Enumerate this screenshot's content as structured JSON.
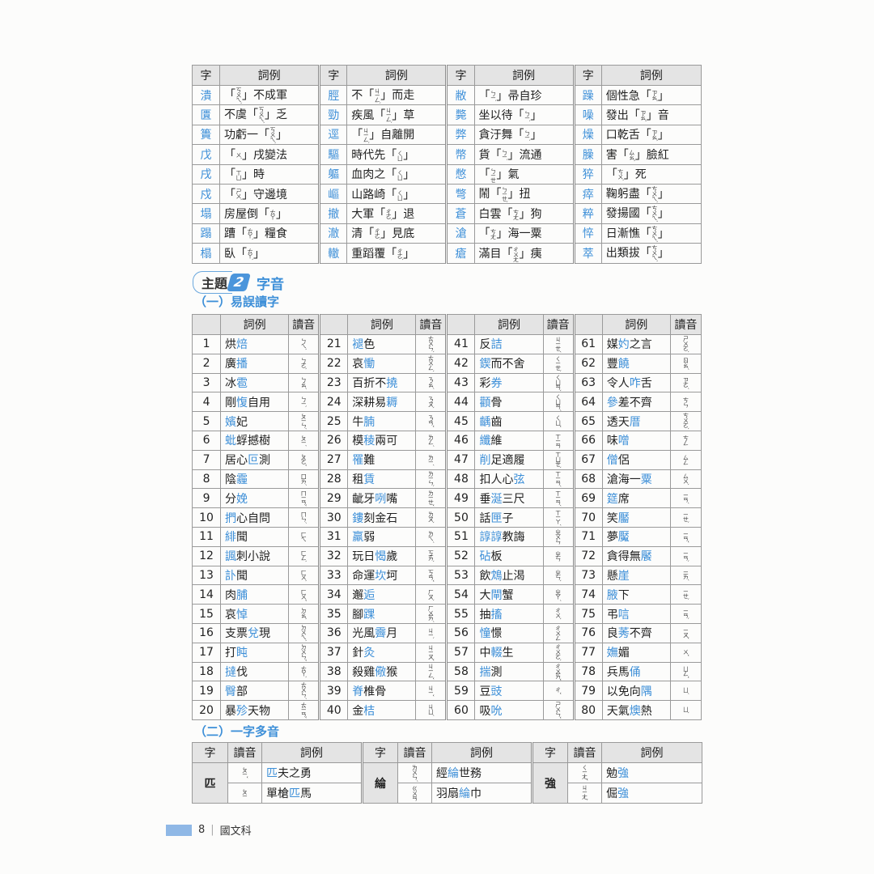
{
  "top_table": {
    "headers": {
      "char": "字",
      "example": "詞例"
    },
    "groups": [
      [
        {
          "char": "潰",
          "pre": "「",
          "zy": "ㄎㄨㄟˋ",
          "post": "」不成軍"
        },
        {
          "char": "匱",
          "pre": "不虞「",
          "zy": "ㄎㄨㄟˋ",
          "post": "」乏"
        },
        {
          "char": "簣",
          "pre": "功虧一「",
          "zy": "ㄎㄨㄟˋ",
          "post": "」"
        },
        {
          "char": "戊",
          "pre": "「",
          "zy": "ㄨˋ",
          "post": "」戌變法"
        },
        {
          "char": "戌",
          "pre": "「",
          "zy": "ㄒㄩ",
          "post": "」時"
        },
        {
          "char": "戍",
          "pre": "「",
          "zy": "ㄕㄨˋ",
          "post": "」守邊境"
        },
        {
          "char": "塌",
          "pre": "房屋倒「",
          "zy": "ㄊㄚ",
          "post": "」"
        },
        {
          "char": "蹋",
          "pre": "蹧「",
          "zy": "ㄊㄚˋ",
          "post": "」糧食"
        },
        {
          "char": "榻",
          "pre": "臥「",
          "zy": "ㄊㄚˋ",
          "post": "」"
        }
      ],
      [
        {
          "char": "脛",
          "pre": "不「",
          "zy": "ㄐㄧㄥˋ",
          "post": "」而走"
        },
        {
          "char": "勁",
          "pre": "疾風「",
          "zy": "ㄐㄧㄥˋ",
          "post": "」草"
        },
        {
          "char": "逕",
          "pre": "「",
          "zy": "ㄐㄧㄥˋ",
          "post": "」自離開"
        },
        {
          "char": "驅",
          "pre": "時代先「",
          "zy": "ㄑㄩ",
          "post": "」"
        },
        {
          "char": "軀",
          "pre": "血肉之「",
          "zy": "ㄑㄩ",
          "post": "」"
        },
        {
          "char": "嶇",
          "pre": "山路崎「",
          "zy": "ㄑㄩ",
          "post": "」"
        },
        {
          "char": "撤",
          "pre": "大軍「",
          "zy": "ㄔㄜˋ",
          "post": "」退"
        },
        {
          "char": "澈",
          "pre": "清「",
          "zy": "ㄔㄜˋ",
          "post": "」見底"
        },
        {
          "char": "轍",
          "pre": "重蹈覆「",
          "zy": "ㄔㄜˋ",
          "post": "」"
        }
      ],
      [
        {
          "char": "敝",
          "pre": "「",
          "zy": "ㄅㄧˋ",
          "post": "」帚自珍"
        },
        {
          "char": "斃",
          "pre": "坐以待「",
          "zy": "ㄅㄧˋ",
          "post": "」"
        },
        {
          "char": "弊",
          "pre": "貪汙舞「",
          "zy": "ㄅㄧˋ",
          "post": "」"
        },
        {
          "char": "幣",
          "pre": "貨「",
          "zy": "ㄅㄧˋ",
          "post": "」流通"
        },
        {
          "char": "憋",
          "pre": "「",
          "zy": "ㄅㄧㄝ",
          "post": "」氣"
        },
        {
          "char": "彆",
          "pre": "鬧「",
          "zy": "ㄅㄧㄝˋ",
          "post": "」扭"
        },
        {
          "char": "蒼",
          "pre": "白雲「",
          "zy": "ㄘㄤ",
          "post": "」狗"
        },
        {
          "char": "滄",
          "pre": "「",
          "zy": "ㄘㄤ",
          "post": "」海一粟"
        },
        {
          "char": "瘡",
          "pre": "滿目「",
          "zy": "ㄔㄨㄤ",
          "post": "」痍"
        }
      ],
      [
        {
          "char": "躁",
          "pre": "個性急「",
          "zy": "ㄗㄠˋ",
          "post": "」"
        },
        {
          "char": "噪",
          "pre": "發出「",
          "zy": "ㄗㄠˋ",
          "post": "」音"
        },
        {
          "char": "燥",
          "pre": "口乾舌「",
          "zy": "ㄗㄠˋ",
          "post": "」"
        },
        {
          "char": "臊",
          "pre": "害「",
          "zy": "ㄙㄠˋ",
          "post": "」臉紅"
        },
        {
          "char": "猝",
          "pre": "「",
          "zy": "ㄘㄨˋ",
          "post": "」死"
        },
        {
          "char": "瘁",
          "pre": "鞠躬盡「",
          "zy": "ㄘㄨㄟˋ",
          "post": "」"
        },
        {
          "char": "粹",
          "pre": "發揚國「",
          "zy": "ㄘㄨㄟˋ",
          "post": "」"
        },
        {
          "char": "悴",
          "pre": "日漸憔「",
          "zy": "ㄘㄨㄟˋ",
          "post": "」"
        },
        {
          "char": "萃",
          "pre": "出類拔「",
          "zy": "ㄘㄨㄟˋ",
          "post": "」"
        }
      ]
    ]
  },
  "topic": {
    "label": "主題",
    "number": "2",
    "title": "字音"
  },
  "section1": {
    "title": "（一）易誤讀字",
    "headers": {
      "example": "詞例",
      "reading": "讀音"
    },
    "items": [
      {
        "n": "1",
        "pre": "烘",
        "hl": "焙",
        "post": "",
        "r": "ㄅㄟˋ"
      },
      {
        "n": "2",
        "pre": "廣",
        "hl": "播",
        "post": "",
        "r": "ㄅㄛˋ"
      },
      {
        "n": "3",
        "pre": "冰",
        "hl": "雹",
        "post": "",
        "r": "ㄅㄠˊ"
      },
      {
        "n": "4",
        "pre": "剛",
        "hl": "愎",
        "post": "自用",
        "r": "ㄅㄧˋ"
      },
      {
        "n": "5",
        "pre": "",
        "hl": "嬪",
        "post": "妃",
        "r": "ㄆㄧㄣˊ"
      },
      {
        "n": "6",
        "pre": "",
        "hl": "蚍",
        "post": "蜉撼樹",
        "r": "ㄆㄧˊ"
      },
      {
        "n": "7",
        "pre": "居心",
        "hl": "叵",
        "post": "測",
        "r": "ㄆㄛˇ"
      },
      {
        "n": "8",
        "pre": "陰",
        "hl": "霾",
        "post": "",
        "r": "ㄇㄞˊ"
      },
      {
        "n": "9",
        "pre": "分",
        "hl": "娩",
        "post": "",
        "r": "ㄇㄧㄢˇ"
      },
      {
        "n": "10",
        "pre": "",
        "hl": "捫",
        "post": "心自問",
        "r": "ㄇㄣˊ"
      },
      {
        "n": "11",
        "pre": "",
        "hl": "緋",
        "post": "聞",
        "r": "ㄈㄟ"
      },
      {
        "n": "12",
        "pre": "",
        "hl": "諷",
        "post": "刺小說",
        "r": "ㄈㄥˋ"
      },
      {
        "n": "13",
        "pre": "",
        "hl": "訃",
        "post": "聞",
        "r": "ㄈㄨˋ"
      },
      {
        "n": "14",
        "pre": "肉",
        "hl": "脯",
        "post": "",
        "r": "ㄈㄨˇ"
      },
      {
        "n": "15",
        "pre": "哀",
        "hl": "悼",
        "post": "",
        "r": "ㄉㄠˋ"
      },
      {
        "n": "16",
        "pre": "支票",
        "hl": "兌",
        "post": "現",
        "r": "ㄉㄨㄟˋ"
      },
      {
        "n": "17",
        "pre": "打",
        "hl": "盹",
        "post": "",
        "r": "ㄉㄨㄣˇ"
      },
      {
        "n": "18",
        "pre": "",
        "hl": "撻",
        "post": "伐",
        "r": "ㄊㄚˋ"
      },
      {
        "n": "19",
        "pre": "",
        "hl": "臀",
        "post": "部",
        "r": "ㄊㄨㄣˊ"
      },
      {
        "n": "20",
        "pre": "暴",
        "hl": "殄",
        "post": "天物",
        "r": "ㄊㄧㄢˇ"
      },
      {
        "n": "21",
        "pre": "",
        "hl": "褪",
        "post": "色",
        "r": "ㄊㄨㄣˋ"
      },
      {
        "n": "22",
        "pre": "哀",
        "hl": "慟",
        "post": "",
        "r": "ㄊㄨㄥˋ"
      },
      {
        "n": "23",
        "pre": "百折不",
        "hl": "撓",
        "post": "",
        "r": "ㄋㄠˊ"
      },
      {
        "n": "24",
        "pre": "深耕易",
        "hl": "耨",
        "post": "",
        "r": "ㄋㄡˋ"
      },
      {
        "n": "25",
        "pre": "牛",
        "hl": "腩",
        "post": "",
        "r": "ㄋㄢˇ"
      },
      {
        "n": "26",
        "pre": "模",
        "hl": "稜",
        "post": "兩可",
        "r": "ㄌㄥˊ"
      },
      {
        "n": "27",
        "pre": "",
        "hl": "罹",
        "post": "難",
        "r": "ㄌㄧˊ"
      },
      {
        "n": "28",
        "pre": "租",
        "hl": "賃",
        "post": "",
        "r": "ㄌㄧㄣˋ"
      },
      {
        "n": "29",
        "pre": "齜牙",
        "hl": "咧",
        "post": "嘴",
        "r": "ㄌㄧㄝˇ"
      },
      {
        "n": "30",
        "pre": "",
        "hl": "鏤",
        "post": "刻金石",
        "r": "ㄌㄡˋ"
      },
      {
        "n": "31",
        "pre": "",
        "hl": "羸",
        "post": "弱",
        "r": "ㄌㄟˊ"
      },
      {
        "n": "32",
        "pre": "玩日",
        "hl": "愒",
        "post": "歲",
        "r": "ㄎㄞˋ"
      },
      {
        "n": "33",
        "pre": "命運",
        "hl": "坎",
        "post": "坷",
        "r": "ㄎㄢˇ"
      },
      {
        "n": "34",
        "pre": "邂",
        "hl": "逅",
        "post": "",
        "r": "ㄏㄡˋ"
      },
      {
        "n": "35",
        "pre": "腳",
        "hl": "踝",
        "post": "",
        "r": "ㄏㄨㄞˊ"
      },
      {
        "n": "36",
        "pre": "光風",
        "hl": "霽",
        "post": "月",
        "r": "ㄐㄧˋ"
      },
      {
        "n": "37",
        "pre": "針",
        "hl": "灸",
        "post": "",
        "r": "ㄐㄧㄡˇ"
      },
      {
        "n": "38",
        "pre": "殺雞",
        "hl": "儆",
        "post": "猴",
        "r": "ㄐㄧㄥˇ"
      },
      {
        "n": "39",
        "pre": "",
        "hl": "脊",
        "post": "椎骨",
        "r": "ㄐㄧˇ"
      },
      {
        "n": "40",
        "pre": "金",
        "hl": "桔",
        "post": "",
        "r": "ㄐㄩˊ"
      },
      {
        "n": "41",
        "pre": "反",
        "hl": "詰",
        "post": "",
        "r": "ㄐㄧㄝˊ"
      },
      {
        "n": "42",
        "pre": "",
        "hl": "鍥",
        "post": "而不舍",
        "r": "ㄑㄧㄝˋ"
      },
      {
        "n": "43",
        "pre": "彩",
        "hl": "券",
        "post": "",
        "r": "ㄑㄩㄢˋ"
      },
      {
        "n": "44",
        "pre": "",
        "hl": "顴",
        "post": "骨",
        "r": "ㄑㄩㄢˊ"
      },
      {
        "n": "45",
        "pre": "",
        "hl": "齲",
        "post": "齒",
        "r": "ㄑㄩˇ"
      },
      {
        "n": "46",
        "pre": "",
        "hl": "纖",
        "post": "維",
        "r": "ㄒㄧㄢ"
      },
      {
        "n": "47",
        "pre": "",
        "hl": "削",
        "post": "足適履",
        "r": "ㄒㄩㄝˋ"
      },
      {
        "n": "48",
        "pre": "扣人心",
        "hl": "弦",
        "post": "",
        "r": "ㄒㄧㄢˊ"
      },
      {
        "n": "49",
        "pre": "垂",
        "hl": "涎",
        "post": "三尺",
        "r": "ㄒㄧㄢˊ"
      },
      {
        "n": "50",
        "pre": "話",
        "hl": "匣",
        "post": "子",
        "r": "ㄒㄧㄚˊ"
      },
      {
        "n": "51",
        "pre": "",
        "hl": "諄諄",
        "post": "教誨",
        "r": "ㄓㄨㄣ"
      },
      {
        "n": "52",
        "pre": "",
        "hl": "砧",
        "post": "板",
        "r": "ㄓㄣ"
      },
      {
        "n": "53",
        "pre": "飲",
        "hl": "鴆",
        "post": "止渴",
        "r": "ㄓㄣˋ"
      },
      {
        "n": "54",
        "pre": "大",
        "hl": "閘",
        "post": "蟹",
        "r": "ㄓㄚˊ"
      },
      {
        "n": "55",
        "pre": "抽",
        "hl": "搐",
        "post": "",
        "r": "ㄔㄨˋ"
      },
      {
        "n": "56",
        "pre": "",
        "hl": "憧",
        "post": "憬",
        "r": "ㄔㄨㄥ"
      },
      {
        "n": "57",
        "pre": "中",
        "hl": "輟",
        "post": "生",
        "r": "ㄔㄨㄛˋ"
      },
      {
        "n": "58",
        "pre": "",
        "hl": "揣",
        "post": "測",
        "r": "ㄔㄨㄞˇ"
      },
      {
        "n": "59",
        "pre": "豆",
        "hl": "豉",
        "post": "",
        "r": "ㄔˇ"
      },
      {
        "n": "60",
        "pre": "吸",
        "hl": "吮",
        "post": "",
        "r": "ㄕㄨㄣˇ"
      },
      {
        "n": "61",
        "pre": "媒",
        "hl": "妁",
        "post": "之言",
        "r": "ㄕㄨㄛˋ"
      },
      {
        "n": "62",
        "pre": "豐",
        "hl": "饒",
        "post": "",
        "r": "ㄖㄠˊ"
      },
      {
        "n": "63",
        "pre": "令人",
        "hl": "咋",
        "post": "舌",
        "r": "ㄗㄜˊ"
      },
      {
        "n": "64",
        "pre": "",
        "hl": "參",
        "post": "差不齊",
        "r": "ㄘㄣ"
      },
      {
        "n": "65",
        "pre": "透天",
        "hl": "厝",
        "post": "",
        "r": "ㄘㄨㄛˋ"
      },
      {
        "n": "66",
        "pre": "味",
        "hl": "噌",
        "post": "",
        "r": "ㄘㄥ"
      },
      {
        "n": "67",
        "pre": "",
        "hl": "僧",
        "post": "侶",
        "r": "ㄙㄥ"
      },
      {
        "n": "68",
        "pre": "滄海一",
        "hl": "粟",
        "post": "",
        "r": "ㄙㄨˋ"
      },
      {
        "n": "69",
        "pre": "",
        "hl": "筵",
        "post": "席",
        "r": "ㄧㄢˊ"
      },
      {
        "n": "70",
        "pre": "笑",
        "hl": "靨",
        "post": "",
        "r": "ㄧㄝˋ"
      },
      {
        "n": "71",
        "pre": "夢",
        "hl": "魘",
        "post": "",
        "r": "ㄧㄢˇ"
      },
      {
        "n": "72",
        "pre": "貪得無",
        "hl": "饜",
        "post": "",
        "r": "ㄧㄢˋ"
      },
      {
        "n": "73",
        "pre": "懸",
        "hl": "崖",
        "post": "",
        "r": "ㄧㄞˊ"
      },
      {
        "n": "74",
        "pre": "",
        "hl": "腋",
        "post": "下",
        "r": "ㄧㄝˋ"
      },
      {
        "n": "75",
        "pre": "弔",
        "hl": "唁",
        "post": "",
        "r": "ㄧㄢˋ"
      },
      {
        "n": "76",
        "pre": "良",
        "hl": "莠",
        "post": "不齊",
        "r": "ㄧㄡˇ"
      },
      {
        "n": "77",
        "pre": "",
        "hl": "嫵",
        "post": "媚",
        "r": "ㄨˇ"
      },
      {
        "n": "78",
        "pre": "兵馬",
        "hl": "俑",
        "post": "",
        "r": "ㄩㄥˇ"
      },
      {
        "n": "79",
        "pre": "以免向",
        "hl": "隅",
        "post": "",
        "r": "ㄩˊ"
      },
      {
        "n": "80",
        "pre": "天氣",
        "hl": "燠",
        "post": "熱",
        "r": "ㄩˋ"
      }
    ]
  },
  "section2": {
    "title": "（二）一字多音",
    "headers": {
      "char": "字",
      "reading": "讀音",
      "example": "詞例"
    },
    "groups": [
      {
        "char": "匹",
        "rows": [
          {
            "r": "ㄆㄧˇ",
            "pre": "",
            "hl": "匹",
            "post": "夫之勇"
          },
          {
            "r": "ㄆㄧ",
            "pre": "單槍",
            "hl": "匹",
            "post": "馬"
          }
        ]
      },
      {
        "char": "綸",
        "rows": [
          {
            "r": "ㄌㄨㄣˊ",
            "pre": "經",
            "hl": "綸",
            "post": "世務"
          },
          {
            "r": "ㄍㄨㄢ",
            "pre": "羽扇",
            "hl": "綸",
            "post": "巾"
          }
        ]
      },
      {
        "char": "強",
        "rows": [
          {
            "r": "ㄑㄧㄤˇ",
            "pre": "勉",
            "hl": "強",
            "post": ""
          },
          {
            "r": "ㄐㄧㄤˋ",
            "pre": "倔",
            "hl": "強",
            "post": ""
          }
        ]
      }
    ]
  },
  "footer": {
    "page": "8",
    "subject": "國文科"
  },
  "colors": {
    "accent": "#3d8fd8",
    "header_bg": "#e4e4e4",
    "footer_bar": "#8fb8e6"
  }
}
